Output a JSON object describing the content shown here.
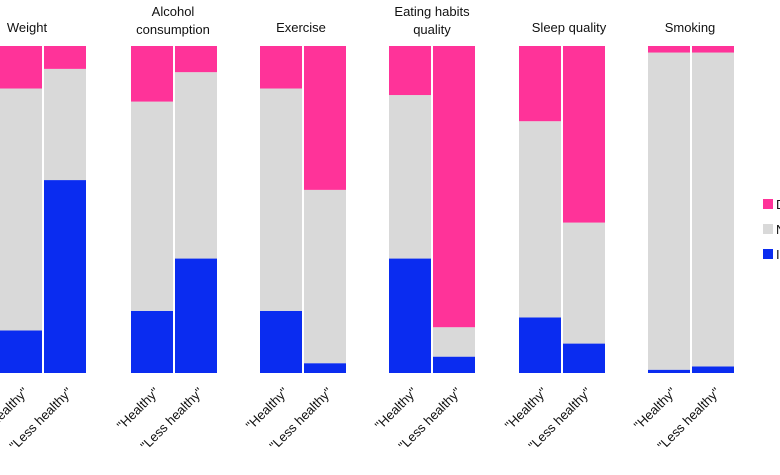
{
  "chart_data": {
    "type": "bar",
    "stacked": true,
    "normalized": true,
    "ylim": [
      0,
      100
    ],
    "grid": false,
    "legend_placement": "right",
    "legend": {
      "items": [
        {
          "label": "D",
          "color": "#ff3399"
        },
        {
          "label": "N",
          "color": "#d9d9d9"
        },
        {
          "label": "I",
          "color": "#0a2cf0"
        }
      ]
    },
    "group_label_size": {
      "Eating habits quality": "two-line"
    },
    "categories": [
      "\"Healthy\"",
      "\"Less healthy\""
    ],
    "panels": [
      {
        "title": [
          "Weight"
        ],
        "bars": [
          {
            "category": "\"Healthy\"",
            "D": 13,
            "N": 74,
            "I": 13
          },
          {
            "category": "\"Less healthy\"",
            "D": 7,
            "N": 34,
            "I": 59
          }
        ]
      },
      {
        "title": [
          "Alcohol",
          "consumption"
        ],
        "bars": [
          {
            "category": "\"Healthy\"",
            "D": 17,
            "N": 64,
            "I": 19
          },
          {
            "category": "\"Less healthy\"",
            "D": 8,
            "N": 57,
            "I": 35
          }
        ]
      },
      {
        "title": [
          "Exercise"
        ],
        "bars": [
          {
            "category": "\"Healthy\"",
            "D": 13,
            "N": 68,
            "I": 19
          },
          {
            "category": "\"Less healthy\"",
            "D": 44,
            "N": 53,
            "I": 3
          }
        ]
      },
      {
        "title": [
          "Eating habits",
          "quality"
        ],
        "bars": [
          {
            "category": "\"Healthy\"",
            "D": 15,
            "N": 50,
            "I": 35
          },
          {
            "category": "\"Less healthy\"",
            "D": 86,
            "N": 9,
            "I": 5
          }
        ]
      },
      {
        "title": [
          "Sleep quality"
        ],
        "bars": [
          {
            "category": "\"Healthy\"",
            "D": 23,
            "N": 60,
            "I": 17
          },
          {
            "category": "\"Less healthy\"",
            "D": 54,
            "N": 37,
            "I": 9
          }
        ]
      },
      {
        "title": [
          "Smoking"
        ],
        "bars": [
          {
            "category": "\"Healthy\"",
            "D": 2,
            "N": 97,
            "I": 1
          },
          {
            "category": "\"Less healthy\"",
            "D": 2,
            "N": 96,
            "I": 2
          }
        ]
      }
    ]
  }
}
